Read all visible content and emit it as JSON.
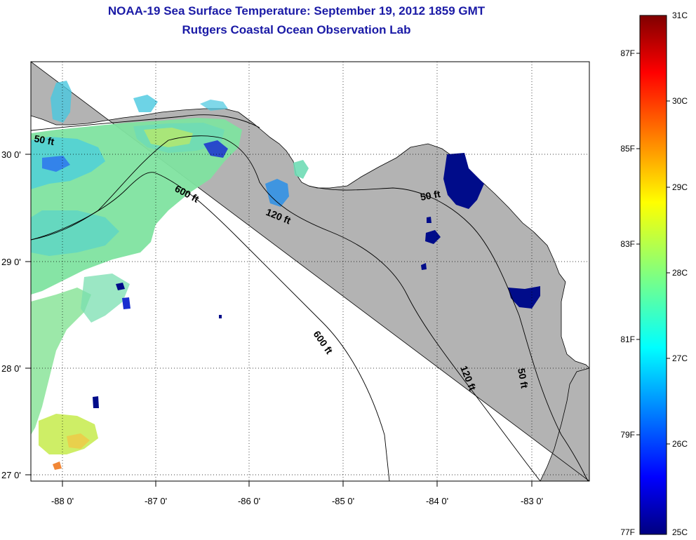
{
  "title_line1": "NOAA-19 Sea Surface Temperature:  September 19, 2012 1859 GMT",
  "title_line2": "Rutgers Coastal Ocean Observation Lab",
  "map": {
    "longitude_ticks": [
      "-88 0'",
      "-87 0'",
      "-86 0'",
      "-85 0'",
      "-84 0'",
      "-83 0'"
    ],
    "latitude_ticks": [
      "30 0'",
      "29 0'",
      "28 0'",
      "27 0'"
    ],
    "land_color": "#b3b3b3",
    "water_nodata_color": "#ffffff",
    "contours": [
      {
        "label": "50 ft"
      },
      {
        "label": "600 ft"
      },
      {
        "label": "120 ft"
      },
      {
        "label": "50 ft"
      },
      {
        "label": "600 ft"
      },
      {
        "label": "120 ft"
      },
      {
        "label": "50 ft"
      }
    ]
  },
  "colorbar": {
    "celsius_labels": [
      "31C",
      "30C",
      "29C",
      "28C",
      "27C",
      "26C",
      "25C"
    ],
    "fahrenheit_labels": [
      "87F",
      "85F",
      "83F",
      "81F",
      "79F",
      "77F"
    ],
    "colormap": "jet",
    "min_c": 25,
    "max_c": 31
  }
}
